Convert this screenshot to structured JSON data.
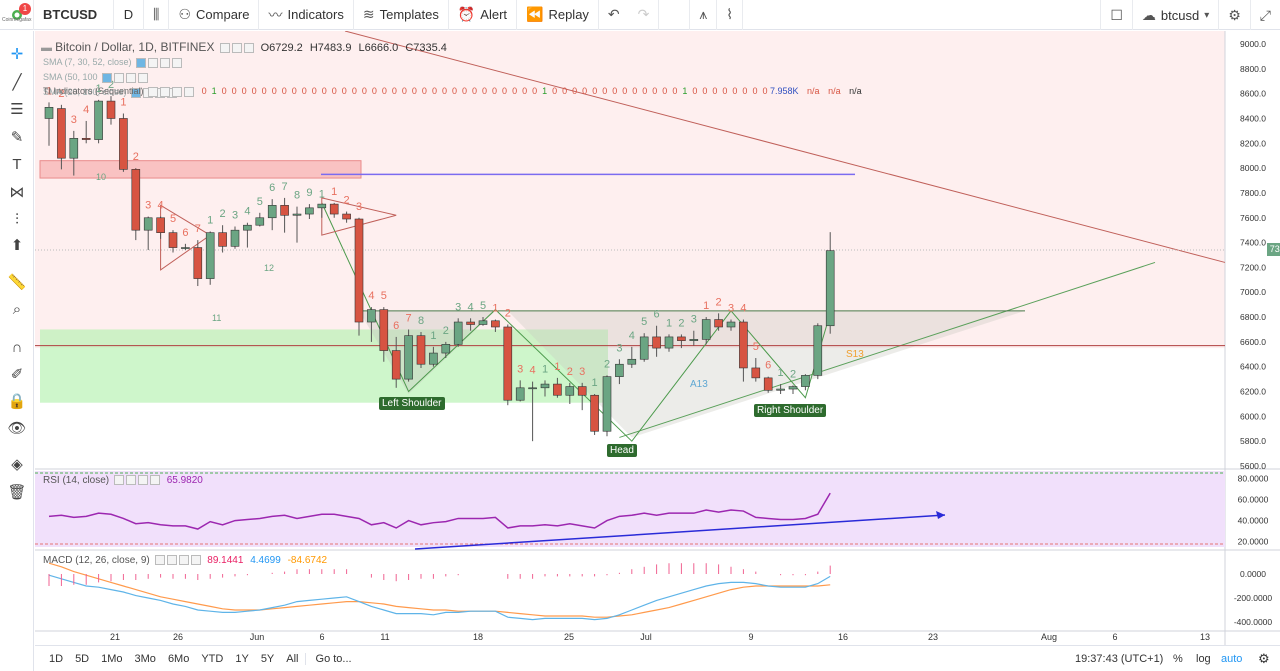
{
  "topbar": {
    "logo_badge": "1",
    "logo_text": "Coinmegafax",
    "symbol": "BTCUSD",
    "interval": "D",
    "compare": "Compare",
    "indicators": "Indicators",
    "templates": "Templates",
    "alert": "Alert",
    "replay": "Replay",
    "layout_name": "btcusd"
  },
  "legend": {
    "title": "Bitcoin / Dollar, 1D, BITFINEX",
    "open": "O6729.2",
    "high": "H7483.9",
    "low": "L6666.0",
    "close": "C7335.4",
    "sma1": "SMA (7, 30, 52, close)",
    "sma2": "SMA (50, 100",
    "sma3": "SMA (20, 100, close)",
    "ti_label": "TI Indicators (Sequential)",
    "ti_values": [
      "0",
      "1",
      "0",
      "0",
      "0",
      "0",
      "0",
      "0",
      "0",
      "0",
      "0",
      "0",
      "0",
      "0",
      "0",
      "0",
      "0",
      "0",
      "0",
      "0",
      "0",
      "0",
      "0",
      "0",
      "0",
      "0",
      "0",
      "0",
      "0",
      "0",
      "0",
      "0",
      "0",
      "0",
      "1",
      "0",
      "0",
      "0",
      "0",
      "0",
      "0",
      "0",
      "0",
      "0",
      "0",
      "0",
      "0",
      "0",
      "1",
      "0",
      "0",
      "0",
      "0",
      "0",
      "0",
      "0",
      "0"
    ],
    "ti_vol": "7.958K",
    "ti_na": [
      "n/a",
      "n/a",
      "n/a"
    ]
  },
  "price_axis": [
    "9000.0",
    "8800.0",
    "8600.0",
    "8400.0",
    "8200.0",
    "8000.0",
    "7800.0",
    "7600.0",
    "7400.0",
    "7200.0",
    "7000.0",
    "6800.0",
    "6600.0",
    "6400.0",
    "6200.0",
    "6000.0",
    "5800.0",
    "5600.0"
  ],
  "price_tag": "7335.4",
  "rsi": {
    "label": "RSI (14, close)",
    "value": "65.9820",
    "axis": [
      "80.0000",
      "60.0000",
      "40.0000",
      "20.0000"
    ]
  },
  "macd": {
    "label": "MACD (12, 26, close, 9)",
    "v1": "89.1441",
    "v2": "4.4699",
    "v3": "-84.6742",
    "axis": [
      "0.0000",
      "-200.0000",
      "-400.0000"
    ]
  },
  "time_axis": [
    "21",
    "26",
    "Jun",
    "6",
    "11",
    "18",
    "25",
    "Jul",
    "9",
    "16",
    "23",
    "Aug",
    "6",
    "13"
  ],
  "annotations": {
    "left_shoulder": "Left Shoulder",
    "head": "Head",
    "right_shoulder": "Right Shoulder",
    "a13": "A13",
    "s13": "S13",
    "label10": "10",
    "label12": "12",
    "label11": "11"
  },
  "bottombar": {
    "ranges": [
      "1D",
      "5D",
      "1Mo",
      "3Mo",
      "6Mo",
      "YTD",
      "1Y",
      "5Y",
      "All"
    ],
    "goto": "Go to...",
    "time": "19:37:43 (UTC+1)",
    "pct": "%",
    "log": "log",
    "auto": "auto"
  },
  "colors": {
    "up": "#6ba583",
    "down": "#d75442",
    "accent": "#2196f3",
    "rsi": "#9c27b0",
    "macd_line": "#5fb4e8",
    "signal": "#ff9a4c"
  },
  "candles": [
    {
      "o": 8400,
      "h": 8530,
      "l": 8180,
      "c": 8490
    },
    {
      "o": 8480,
      "h": 8510,
      "l": 7990,
      "c": 8080
    },
    {
      "o": 8080,
      "h": 8300,
      "l": 7940,
      "c": 8240
    },
    {
      "o": 8240,
      "h": 8380,
      "l": 8200,
      "c": 8230
    },
    {
      "o": 8230,
      "h": 8550,
      "l": 8200,
      "c": 8540
    },
    {
      "o": 8540,
      "h": 8580,
      "l": 8350,
      "c": 8400
    },
    {
      "o": 8400,
      "h": 8440,
      "l": 7970,
      "c": 7990
    },
    {
      "o": 7990,
      "h": 8000,
      "l": 7420,
      "c": 7500
    },
    {
      "o": 7500,
      "h": 7610,
      "l": 7340,
      "c": 7600
    },
    {
      "o": 7600,
      "h": 7610,
      "l": 7430,
      "c": 7480
    },
    {
      "o": 7480,
      "h": 7500,
      "l": 7320,
      "c": 7360
    },
    {
      "o": 7360,
      "h": 7390,
      "l": 7340,
      "c": 7360
    },
    {
      "o": 7360,
      "h": 7420,
      "l": 7050,
      "c": 7110
    },
    {
      "o": 7110,
      "h": 7490,
      "l": 7060,
      "c": 7480
    },
    {
      "o": 7480,
      "h": 7540,
      "l": 7320,
      "c": 7370
    },
    {
      "o": 7370,
      "h": 7530,
      "l": 7350,
      "c": 7500
    },
    {
      "o": 7500,
      "h": 7560,
      "l": 7360,
      "c": 7540
    },
    {
      "o": 7540,
      "h": 7640,
      "l": 7530,
      "c": 7600
    },
    {
      "o": 7600,
      "h": 7750,
      "l": 7500,
      "c": 7700
    },
    {
      "o": 7700,
      "h": 7760,
      "l": 7480,
      "c": 7620
    },
    {
      "o": 7620,
      "h": 7690,
      "l": 7400,
      "c": 7630
    },
    {
      "o": 7630,
      "h": 7710,
      "l": 7590,
      "c": 7680
    },
    {
      "o": 7680,
      "h": 7700,
      "l": 7600,
      "c": 7710
    },
    {
      "o": 7710,
      "h": 7720,
      "l": 7600,
      "c": 7630
    },
    {
      "o": 7630,
      "h": 7650,
      "l": 7560,
      "c": 7590
    },
    {
      "o": 7590,
      "h": 7600,
      "l": 6650,
      "c": 6760
    },
    {
      "o": 6760,
      "h": 6880,
      "l": 6600,
      "c": 6860
    },
    {
      "o": 6860,
      "h": 6880,
      "l": 6440,
      "c": 6530
    },
    {
      "o": 6530,
      "h": 6640,
      "l": 6230,
      "c": 6300
    },
    {
      "o": 6300,
      "h": 6700,
      "l": 6280,
      "c": 6650
    },
    {
      "o": 6650,
      "h": 6680,
      "l": 6390,
      "c": 6420
    },
    {
      "o": 6420,
      "h": 6560,
      "l": 6400,
      "c": 6510
    },
    {
      "o": 6510,
      "h": 6600,
      "l": 6470,
      "c": 6580
    },
    {
      "o": 6580,
      "h": 6790,
      "l": 6560,
      "c": 6760
    },
    {
      "o": 6760,
      "h": 6790,
      "l": 6690,
      "c": 6740
    },
    {
      "o": 6740,
      "h": 6800,
      "l": 6730,
      "c": 6770
    },
    {
      "o": 6770,
      "h": 6780,
      "l": 6680,
      "c": 6720
    },
    {
      "o": 6720,
      "h": 6740,
      "l": 6090,
      "c": 6130
    },
    {
      "o": 6130,
      "h": 6290,
      "l": 6120,
      "c": 6230
    },
    {
      "o": 6230,
      "h": 6280,
      "l": 5800,
      "c": 6230
    },
    {
      "o": 6230,
      "h": 6290,
      "l": 6160,
      "c": 6260
    },
    {
      "o": 6260,
      "h": 6310,
      "l": 6150,
      "c": 6170
    },
    {
      "o": 6170,
      "h": 6270,
      "l": 6100,
      "c": 6240
    },
    {
      "o": 6240,
      "h": 6270,
      "l": 6050,
      "c": 6170
    },
    {
      "o": 6170,
      "h": 6180,
      "l": 5850,
      "c": 5880
    },
    {
      "o": 5880,
      "h": 6330,
      "l": 5840,
      "c": 6320
    },
    {
      "o": 6320,
      "h": 6460,
      "l": 6260,
      "c": 6420
    },
    {
      "o": 6420,
      "h": 6560,
      "l": 6390,
      "c": 6460
    },
    {
      "o": 6460,
      "h": 6670,
      "l": 6440,
      "c": 6640
    },
    {
      "o": 6640,
      "h": 6730,
      "l": 6480,
      "c": 6550
    },
    {
      "o": 6550,
      "h": 6660,
      "l": 6520,
      "c": 6640
    },
    {
      "o": 6640,
      "h": 6660,
      "l": 6550,
      "c": 6610
    },
    {
      "o": 6610,
      "h": 6690,
      "l": 6570,
      "c": 6620
    },
    {
      "o": 6620,
      "h": 6800,
      "l": 6580,
      "c": 6780
    },
    {
      "o": 6780,
      "h": 6830,
      "l": 6690,
      "c": 6720
    },
    {
      "o": 6720,
      "h": 6780,
      "l": 6690,
      "c": 6760
    },
    {
      "o": 6760,
      "h": 6780,
      "l": 6280,
      "c": 6390
    },
    {
      "o": 6390,
      "h": 6470,
      "l": 6280,
      "c": 6310
    },
    {
      "o": 6310,
      "h": 6320,
      "l": 6190,
      "c": 6210
    },
    {
      "o": 6210,
      "h": 6260,
      "l": 6180,
      "c": 6220
    },
    {
      "o": 6220,
      "h": 6250,
      "l": 6180,
      "c": 6240
    },
    {
      "o": 6240,
      "h": 6340,
      "l": 6210,
      "c": 6330
    },
    {
      "o": 6330,
      "h": 6750,
      "l": 6300,
      "c": 6730
    },
    {
      "o": 6730,
      "h": 7484,
      "l": 6666,
      "c": 7335
    }
  ],
  "rsi_values": [
    44,
    45,
    43,
    44,
    47,
    46,
    42,
    37,
    38,
    36,
    35,
    35,
    32,
    39,
    36,
    40,
    41,
    42,
    44,
    45,
    42,
    44,
    46,
    46,
    44,
    42,
    36,
    38,
    33,
    40,
    36,
    38,
    39,
    42,
    42,
    42,
    43,
    33,
    35,
    35,
    36,
    35,
    37,
    35,
    33,
    40,
    44,
    45,
    47,
    45,
    47,
    47,
    47,
    50,
    48,
    50,
    49,
    43,
    42,
    41,
    41,
    42,
    46,
    66
  ],
  "macd_values": [
    -10,
    -40,
    -70,
    -100,
    -110,
    -130,
    -150,
    -180,
    -200,
    -220,
    -250,
    -270,
    -300,
    -310,
    -320,
    -320,
    -310,
    -300,
    -280,
    -260,
    -230,
    -220,
    -210,
    -200,
    -190,
    -230,
    -270,
    -300,
    -330,
    -330,
    -330,
    -340,
    -320,
    -320,
    -310,
    -310,
    -310,
    -360,
    -370,
    -380,
    -370,
    -370,
    -370,
    -370,
    -380,
    -370,
    -340,
    -300,
    -260,
    -220,
    -190,
    -160,
    -130,
    -100,
    -80,
    -70,
    -70,
    -80,
    -100,
    -110,
    -110,
    -110,
    -80,
    -20
  ],
  "signal_values": [
    90,
    60,
    20,
    -10,
    -40,
    -70,
    -100,
    -130,
    -160,
    -190,
    -210,
    -230,
    -250,
    -270,
    -290,
    -300,
    -300,
    -300,
    -290,
    -280,
    -270,
    -260,
    -250,
    -240,
    -230,
    -230,
    -240,
    -250,
    -270,
    -280,
    -290,
    -300,
    -300,
    -310,
    -310,
    -310,
    -310,
    -320,
    -330,
    -340,
    -350,
    -350,
    -350,
    -350,
    -360,
    -360,
    -350,
    -340,
    -320,
    -300,
    -280,
    -250,
    -220,
    -190,
    -160,
    -130,
    -110,
    -100,
    -100,
    -100,
    -100,
    -100,
    -100,
    -90
  ],
  "td_counts": [
    {
      "i": 0,
      "t": "1",
      "up": false
    },
    {
      "i": 1,
      "t": "2",
      "up": false
    },
    {
      "i": 2,
      "t": "3",
      "up": false
    },
    {
      "i": 3,
      "t": "4",
      "up": false
    },
    {
      "i": 4,
      "t": "1",
      "up": true
    },
    {
      "i": 5,
      "t": "2",
      "up": true
    },
    {
      "i": 6,
      "t": "1",
      "up": false
    },
    {
      "i": 7,
      "t": "2",
      "up": false
    },
    {
      "i": 8,
      "t": "3",
      "up": false
    },
    {
      "i": 9,
      "t": "4",
      "up": false
    },
    {
      "i": 10,
      "t": "5",
      "up": false
    },
    {
      "i": 11,
      "t": "6",
      "up": false
    },
    {
      "i": 12,
      "t": "7",
      "up": false
    },
    {
      "i": 13,
      "t": "1",
      "up": true
    },
    {
      "i": 14,
      "t": "2",
      "up": true
    },
    {
      "i": 15,
      "t": "3",
      "up": true
    },
    {
      "i": 16,
      "t": "4",
      "up": true
    },
    {
      "i": 17,
      "t": "5",
      "up": true
    },
    {
      "i": 18,
      "t": "6",
      "up": true
    },
    {
      "i": 19,
      "t": "7",
      "up": true
    },
    {
      "i": 20,
      "t": "8",
      "up": true
    },
    {
      "i": 21,
      "t": "9",
      "up": true
    },
    {
      "i": 22,
      "t": "1",
      "up": true
    },
    {
      "i": 23,
      "t": "1",
      "up": false
    },
    {
      "i": 24,
      "t": "2",
      "up": false
    },
    {
      "i": 25,
      "t": "3",
      "up": false
    },
    {
      "i": 26,
      "t": "4",
      "up": false
    },
    {
      "i": 27,
      "t": "5",
      "up": false
    },
    {
      "i": 28,
      "t": "6",
      "up": false
    },
    {
      "i": 29,
      "t": "7",
      "up": false
    },
    {
      "i": 30,
      "t": "8",
      "up": true
    },
    {
      "i": 31,
      "t": "1",
      "up": true
    },
    {
      "i": 32,
      "t": "2",
      "up": true
    },
    {
      "i": 33,
      "t": "3",
      "up": true
    },
    {
      "i": 34,
      "t": "4",
      "up": true
    },
    {
      "i": 35,
      "t": "5",
      "up": true
    },
    {
      "i": 36,
      "t": "1",
      "up": false
    },
    {
      "i": 37,
      "t": "2",
      "up": false
    },
    {
      "i": 38,
      "t": "3",
      "up": false
    },
    {
      "i": 39,
      "t": "4",
      "up": false
    },
    {
      "i": 40,
      "t": "1",
      "up": true
    },
    {
      "i": 41,
      "t": "1",
      "up": false
    },
    {
      "i": 42,
      "t": "2",
      "up": false
    },
    {
      "i": 43,
      "t": "3",
      "up": false
    },
    {
      "i": 44,
      "t": "1",
      "up": true
    },
    {
      "i": 45,
      "t": "2",
      "up": true
    },
    {
      "i": 46,
      "t": "3",
      "up": true
    },
    {
      "i": 47,
      "t": "4",
      "up": true
    },
    {
      "i": 48,
      "t": "5",
      "up": true
    },
    {
      "i": 49,
      "t": "6",
      "up": true
    },
    {
      "i": 50,
      "t": "1",
      "up": true
    },
    {
      "i": 51,
      "t": "2",
      "up": true
    },
    {
      "i": 52,
      "t": "3",
      "up": true
    },
    {
      "i": 53,
      "t": "1",
      "up": false
    },
    {
      "i": 54,
      "t": "2",
      "up": false
    },
    {
      "i": 55,
      "t": "3",
      "up": false
    },
    {
      "i": 56,
      "t": "4",
      "up": false
    },
    {
      "i": 57,
      "t": "5",
      "up": false
    },
    {
      "i": 58,
      "t": "6",
      "up": false
    },
    {
      "i": 59,
      "t": "1",
      "up": true
    },
    {
      "i": 60,
      "t": "2",
      "up": true
    }
  ]
}
